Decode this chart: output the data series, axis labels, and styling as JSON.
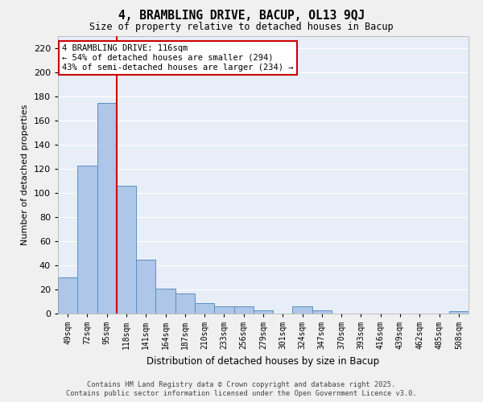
{
  "title": "4, BRAMBLING DRIVE, BACUP, OL13 9QJ",
  "subtitle": "Size of property relative to detached houses in Bacup",
  "xlabel": "Distribution of detached houses by size in Bacup",
  "ylabel": "Number of detached properties",
  "categories": [
    "49sqm",
    "72sqm",
    "95sqm",
    "118sqm",
    "141sqm",
    "164sqm",
    "187sqm",
    "210sqm",
    "233sqm",
    "256sqm",
    "279sqm",
    "301sqm",
    "324sqm",
    "347sqm",
    "370sqm",
    "393sqm",
    "416sqm",
    "439sqm",
    "462sqm",
    "485sqm",
    "508sqm"
  ],
  "values": [
    30,
    123,
    175,
    106,
    45,
    21,
    17,
    9,
    6,
    6,
    3,
    0,
    6,
    3,
    0,
    0,
    0,
    0,
    0,
    0,
    2
  ],
  "bar_color": "#aec6e8",
  "bar_edge_color": "#5a8fc2",
  "red_line_x": 2.5,
  "annotation_text": "4 BRAMBLING DRIVE: 116sqm\n← 54% of detached houses are smaller (294)\n43% of semi-detached houses are larger (234) →",
  "annotation_box_facecolor": "#ffffff",
  "annotation_box_edgecolor": "#cc0000",
  "ylim": [
    0,
    230
  ],
  "yticks": [
    0,
    20,
    40,
    60,
    80,
    100,
    120,
    140,
    160,
    180,
    200,
    220
  ],
  "background_color": "#e8eef8",
  "grid_color": "#ffffff",
  "fig_facecolor": "#f0f0f0",
  "footer_line1": "Contains HM Land Registry data © Crown copyright and database right 2025.",
  "footer_line2": "Contains public sector information licensed under the Open Government Licence v3.0."
}
